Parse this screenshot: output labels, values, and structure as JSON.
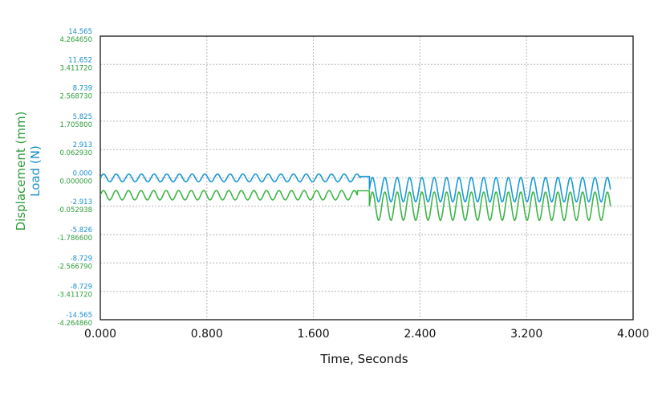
{
  "chart_data": {
    "type": "line",
    "xlabel": "Time, Seconds",
    "ylabel_displacement": "Displacement (mm)",
    "ylabel_load": "Load (N)",
    "xlim": [
      0,
      4.0
    ],
    "x_ticks": [
      "0.000",
      "0.800",
      "1.600",
      "2.400",
      "3.200",
      "4.000"
    ],
    "x_tick_values": [
      0,
      0.8,
      1.6,
      2.4,
      3.2,
      4.0
    ],
    "grid": true,
    "y_ticks": [
      {
        "load": "14.565",
        "disp": "4.264650"
      },
      {
        "load": "11.652",
        "disp": "3.411720"
      },
      {
        "load": "8.739",
        "disp": "2.568730"
      },
      {
        "load": "5.825",
        "disp": "1.705800"
      },
      {
        "load": "2.913",
        "disp": "0.062930"
      },
      {
        "load": "0.000",
        "disp": "0.000000"
      },
      {
        "load": "-2.913",
        "disp": "-0.052938"
      },
      {
        "load": "-5.826",
        "disp": "-1.786600"
      },
      {
        "load": "-8.729",
        "disp": "-2.566790"
      },
      {
        "load": "-8.729",
        "disp": "-3.411720"
      },
      {
        "load": "-14.565",
        "disp": "-4.264860"
      }
    ],
    "load_ylim": [
      -14.565,
      14.565
    ],
    "disp_ylim": [
      -4.26486,
      4.26465
    ],
    "series": [
      {
        "name": "Load (N)",
        "color": "#1a9ad6",
        "segments": [
          {
            "x_start": 0.0,
            "x_end": 1.95,
            "center": 0.0,
            "amplitude": 0.4,
            "cycles": 20.5
          },
          {
            "x_start": 1.95,
            "x_end": 2.02,
            "center": 0.15,
            "amplitude": 0.0,
            "cycles": 0
          },
          {
            "x_start": 2.02,
            "x_end": 3.83,
            "center": -1.2,
            "amplitude": 1.25,
            "cycles": 19.5
          }
        ]
      },
      {
        "name": "Displacement (mm)",
        "color": "#3fb449",
        "segments": [
          {
            "x_start": 0.0,
            "x_end": 1.93,
            "center": -1.78,
            "amplitude": 0.48,
            "cycles": 20.5
          },
          {
            "x_start": 1.93,
            "x_end": 2.02,
            "center": -1.32,
            "amplitude": 0.0,
            "cycles": 0
          },
          {
            "x_start": 2.02,
            "x_end": 3.83,
            "center": -2.9,
            "amplitude": 1.45,
            "cycles": 19.5
          }
        ]
      }
    ]
  }
}
